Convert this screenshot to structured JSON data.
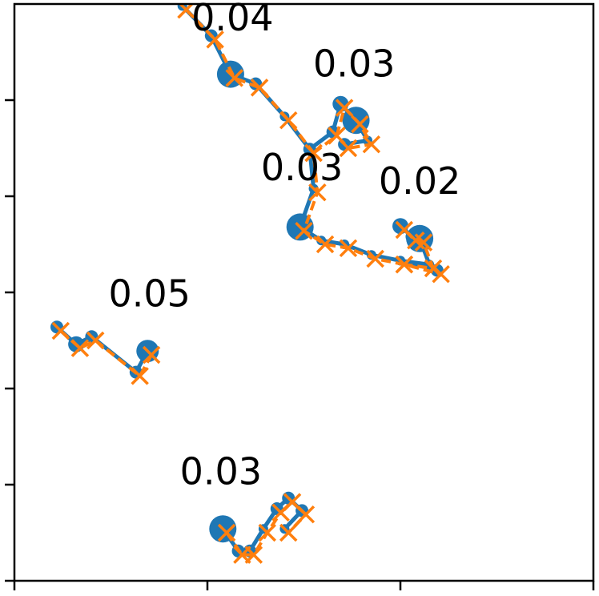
{
  "chart_data": {
    "type": "line",
    "xlim": [
      0,
      3
    ],
    "ylim": [
      0,
      6
    ],
    "xticks": [
      0,
      1,
      2,
      3
    ],
    "yticks": [
      0,
      1,
      2,
      3,
      4,
      5
    ],
    "series": [
      {
        "color": "#1f77b4",
        "marker": "o",
        "linestyle": "solid",
        "x": [
          0.87,
          1.02,
          1.12,
          1.25,
          1.4,
          1.53,
          1.55,
          1.48,
          1.59,
          1.71,
          1.85,
          2.0,
          2.19,
          null,
          1.53,
          1.65,
          1.69,
          1.77,
          1.83,
          1.71,
          null,
          2.0,
          2.06,
          2.1,
          2.15,
          2.0,
          null,
          0.22,
          0.32,
          0.4,
          0.63,
          0.69,
          null,
          1.08,
          1.16,
          1.22,
          1.29,
          1.36,
          1.42,
          1.49,
          1.4
        ],
        "values": [
          5.98,
          5.67,
          5.27,
          5.17,
          4.83,
          4.49,
          4.08,
          3.68,
          3.54,
          3.5,
          3.39,
          3.33,
          3.23,
          null,
          4.49,
          4.67,
          4.96,
          4.79,
          4.58,
          4.54,
          null,
          3.69,
          3.58,
          3.56,
          3.29,
          3.33,
          null,
          2.64,
          2.46,
          2.54,
          2.17,
          2.39,
          null,
          0.54,
          0.31,
          0.31,
          0.54,
          0.75,
          0.86,
          0.73,
          0.54
        ],
        "sizes": [
          6,
          8,
          17,
          8,
          6,
          8,
          6,
          17,
          6,
          6,
          6,
          6,
          8,
          null,
          6,
          8,
          10,
          17,
          6,
          8,
          null,
          10,
          8,
          17,
          6,
          6,
          null,
          8,
          10,
          8,
          8,
          14,
          null,
          17,
          8,
          8,
          6,
          8,
          8,
          8,
          6
        ]
      },
      {
        "color": "#ff7f0e",
        "marker": "x",
        "linestyle": "dashed",
        "x": [
          0.89,
          1.04,
          1.14,
          1.27,
          1.42,
          1.55,
          1.57,
          1.5,
          1.61,
          1.73,
          1.87,
          2.02,
          2.21,
          null,
          1.55,
          1.67,
          1.71,
          1.79,
          1.85,
          1.73,
          null,
          2.02,
          2.08,
          2.12,
          2.17,
          2.02,
          null,
          0.24,
          0.34,
          0.42,
          0.65,
          0.71,
          null,
          1.1,
          1.18,
          1.24,
          1.31,
          1.38,
          1.44,
          1.51,
          1.42
        ],
        "values": [
          5.94,
          5.63,
          5.23,
          5.13,
          4.79,
          4.45,
          4.04,
          3.64,
          3.5,
          3.46,
          3.35,
          3.29,
          3.19,
          null,
          4.45,
          4.63,
          4.92,
          4.75,
          4.54,
          4.5,
          null,
          3.65,
          3.54,
          3.52,
          3.25,
          3.29,
          null,
          2.6,
          2.42,
          2.5,
          2.13,
          2.35,
          null,
          0.5,
          0.27,
          0.27,
          0.5,
          0.71,
          0.82,
          0.69,
          0.5
        ]
      }
    ],
    "annotations": [
      {
        "text": "0.04",
        "x": 1.13,
        "y": 5.83
      },
      {
        "text": "0.03",
        "x": 1.76,
        "y": 5.35
      },
      {
        "text": "0.03",
        "x": 1.49,
        "y": 4.27
      },
      {
        "text": "0.02",
        "x": 2.1,
        "y": 4.13
      },
      {
        "text": "0.05",
        "x": 0.7,
        "y": 2.96
      },
      {
        "text": "0.03",
        "x": 1.07,
        "y": 1.11
      }
    ]
  }
}
